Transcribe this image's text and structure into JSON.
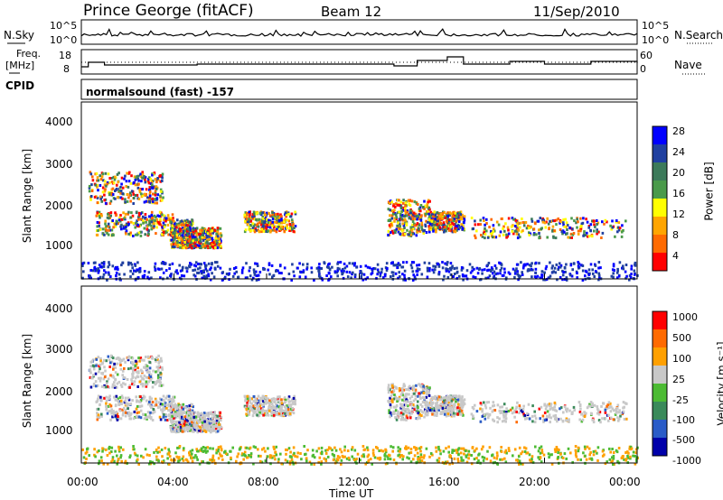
{
  "header": {
    "station": "Prince George (fitACF)",
    "beam": "Beam 12",
    "date": "11/Sep/2010"
  },
  "noise_panel": {
    "left_label": "N.Sky",
    "right_label": "N.Search",
    "ticks_left": [
      "10^5",
      "10^0"
    ],
    "ticks_right": [
      "10^5",
      "10^0"
    ]
  },
  "freq_panel": {
    "left_label_1": "Freq.",
    "left_label_2": "[MHz]",
    "right_label": "Nave",
    "ticks_left": [
      "18",
      "8"
    ],
    "ticks_right": [
      "60",
      "0"
    ]
  },
  "cpid": {
    "label": "CPID",
    "mode": "normalsound (fast) -157"
  },
  "colors": {
    "power_scale": [
      "#0000ff",
      "#2040a0",
      "#3c7a5a",
      "#4a9a4a",
      "#ffff00",
      "#ffa500",
      "#ff6a00",
      "#ff0000"
    ],
    "velocity_scale": [
      "#0000aa",
      "#2a5cc8",
      "#3a8a5a",
      "#4cbb33",
      "#c8c8c8",
      "#ffa000",
      "#ff6a00",
      "#ff0000"
    ]
  },
  "chart_data": [
    {
      "type": "heatmap",
      "title": "",
      "ylabel": "Slant Range [km]",
      "yticks": [
        "4000",
        "3000",
        "2000",
        "1000"
      ],
      "ylim": [
        200,
        4600
      ],
      "colorbar_label": "Power [dB]",
      "colorbar_ticks": [
        "28",
        "24",
        "20",
        "16",
        "12",
        "8",
        "4"
      ],
      "echo_bands": [
        {
          "x": [
            0.6,
            4.0
          ],
          "y": [
            1300,
            1900
          ]
        },
        {
          "x": [
            0.3,
            3.5
          ],
          "y": [
            2100,
            2900
          ]
        },
        {
          "x": [
            3.8,
            4.8
          ],
          "y": [
            1000,
            1700
          ]
        },
        {
          "x": [
            4.5,
            6.0
          ],
          "y": [
            1000,
            1500
          ]
        },
        {
          "x": [
            7.0,
            9.2
          ],
          "y": [
            1400,
            1900
          ]
        },
        {
          "x": [
            13.2,
            15.0
          ],
          "y": [
            1300,
            2200
          ]
        },
        {
          "x": [
            15.0,
            16.5
          ],
          "y": [
            1400,
            1900
          ]
        },
        {
          "x": [
            16.8,
            23.5
          ],
          "y": [
            1250,
            1750
          ]
        },
        {
          "x": [
            0.0,
            24.0
          ],
          "y": [
            200,
            650
          ]
        }
      ]
    },
    {
      "type": "heatmap",
      "title": "",
      "ylabel": "Slant Range [km]",
      "yticks": [
        "4000",
        "3000",
        "2000",
        "1000"
      ],
      "ylim": [
        200,
        4600
      ],
      "colorbar_label": "Velocity [m s⁻¹]",
      "colorbar_ticks": [
        "1000",
        "500",
        "100",
        "25",
        "-25",
        "-100",
        "-500",
        "-1000"
      ],
      "xlabel": "Time UT",
      "xticks": [
        "00:00",
        "04:00",
        "08:00",
        "12:00",
        "16:00",
        "20:00",
        "00:00"
      ]
    }
  ]
}
